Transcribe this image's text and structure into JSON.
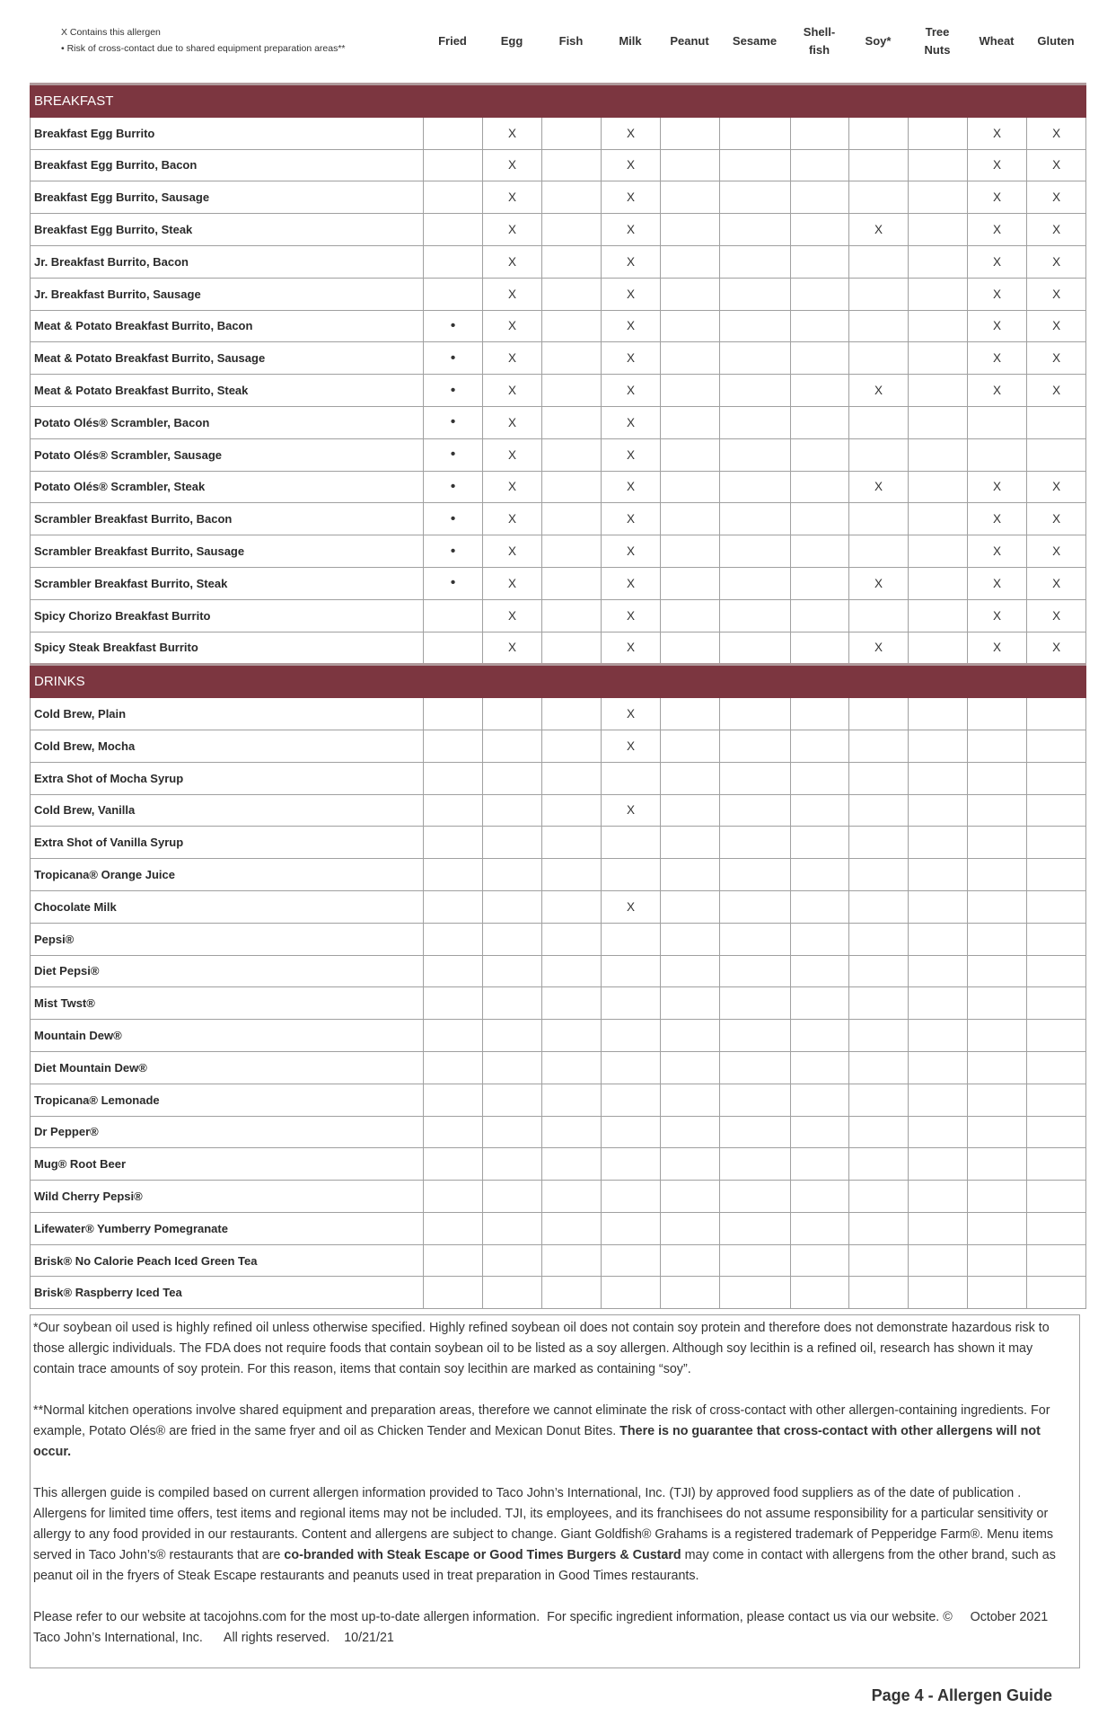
{
  "legend": {
    "contains": "X  Contains this allergen",
    "risk": "•  Risk of cross-contact due to shared equipment preparation areas**"
  },
  "columns": [
    "Fried",
    "Egg",
    "Fish",
    "Milk",
    "Peanut",
    "Sesame",
    "Shell-\nfish",
    "Soy*",
    "Tree\nNuts",
    "Wheat",
    "Gluten"
  ],
  "sections": [
    {
      "title": "BREAKFAST",
      "rows": [
        {
          "name": "Breakfast Egg Burrito",
          "cells": [
            "",
            "X",
            "",
            "X",
            "",
            "",
            "",
            "",
            "",
            "X",
            "X"
          ]
        },
        {
          "name": "Breakfast Egg Burrito, Bacon",
          "cells": [
            "",
            "X",
            "",
            "X",
            "",
            "",
            "",
            "",
            "",
            "X",
            "X"
          ]
        },
        {
          "name": "Breakfast Egg Burrito, Sausage",
          "cells": [
            "",
            "X",
            "",
            "X",
            "",
            "",
            "",
            "",
            "",
            "X",
            "X"
          ]
        },
        {
          "name": "Breakfast Egg Burrito, Steak",
          "cells": [
            "",
            "X",
            "",
            "X",
            "",
            "",
            "",
            "X",
            "",
            "X",
            "X"
          ]
        },
        {
          "name": "Jr. Breakfast Burrito, Bacon",
          "cells": [
            "",
            "X",
            "",
            "X",
            "",
            "",
            "",
            "",
            "",
            "X",
            "X"
          ]
        },
        {
          "name": "Jr. Breakfast Burrito, Sausage",
          "cells": [
            "",
            "X",
            "",
            "X",
            "",
            "",
            "",
            "",
            "",
            "X",
            "X"
          ]
        },
        {
          "name": "Meat & Potato Breakfast Burrito, Bacon",
          "cells": [
            "•",
            "X",
            "",
            "X",
            "",
            "",
            "",
            "",
            "",
            "X",
            "X"
          ]
        },
        {
          "name": "Meat & Potato Breakfast Burrito, Sausage",
          "cells": [
            "•",
            "X",
            "",
            "X",
            "",
            "",
            "",
            "",
            "",
            "X",
            "X"
          ]
        },
        {
          "name": "Meat & Potato Breakfast Burrito, Steak",
          "cells": [
            "•",
            "X",
            "",
            "X",
            "",
            "",
            "",
            "X",
            "",
            "X",
            "X"
          ]
        },
        {
          "name": "Potato Olés® Scrambler, Bacon",
          "cells": [
            "•",
            "X",
            "",
            "X",
            "",
            "",
            "",
            "",
            "",
            "",
            ""
          ]
        },
        {
          "name": "Potato Olés® Scrambler, Sausage",
          "cells": [
            "•",
            "X",
            "",
            "X",
            "",
            "",
            "",
            "",
            "",
            "",
            ""
          ]
        },
        {
          "name": "Potato Olés® Scrambler, Steak",
          "cells": [
            "•",
            "X",
            "",
            "X",
            "",
            "",
            "",
            "X",
            "",
            "X",
            "X"
          ]
        },
        {
          "name": "Scrambler Breakfast Burrito, Bacon",
          "cells": [
            "•",
            "X",
            "",
            "X",
            "",
            "",
            "",
            "",
            "",
            "X",
            "X"
          ]
        },
        {
          "name": "Scrambler Breakfast Burrito, Sausage",
          "cells": [
            "•",
            "X",
            "",
            "X",
            "",
            "",
            "",
            "",
            "",
            "X",
            "X"
          ]
        },
        {
          "name": "Scrambler Breakfast Burrito, Steak",
          "cells": [
            "•",
            "X",
            "",
            "X",
            "",
            "",
            "",
            "X",
            "",
            "X",
            "X"
          ]
        },
        {
          "name": "Spicy Chorizo Breakfast Burrito",
          "cells": [
            "",
            "X",
            "",
            "X",
            "",
            "",
            "",
            "",
            "",
            "X",
            "X"
          ]
        },
        {
          "name": "Spicy Steak Breakfast Burrito",
          "cells": [
            "",
            "X",
            "",
            "X",
            "",
            "",
            "",
            "X",
            "",
            "X",
            "X"
          ]
        }
      ]
    },
    {
      "title": "DRINKS",
      "rows": [
        {
          "name": "Cold Brew, Plain",
          "cells": [
            "",
            "",
            "",
            "X",
            "",
            "",
            "",
            "",
            "",
            "",
            ""
          ]
        },
        {
          "name": "Cold Brew, Mocha",
          "cells": [
            "",
            "",
            "",
            "X",
            "",
            "",
            "",
            "",
            "",
            "",
            ""
          ]
        },
        {
          "name": "Extra Shot of Mocha Syrup",
          "cells": [
            "",
            "",
            "",
            "",
            "",
            "",
            "",
            "",
            "",
            "",
            ""
          ]
        },
        {
          "name": "Cold Brew, Vanilla",
          "cells": [
            "",
            "",
            "",
            "X",
            "",
            "",
            "",
            "",
            "",
            "",
            ""
          ]
        },
        {
          "name": "Extra Shot of Vanilla Syrup",
          "cells": [
            "",
            "",
            "",
            "",
            "",
            "",
            "",
            "",
            "",
            "",
            ""
          ]
        },
        {
          "name": "Tropicana® Orange Juice",
          "cells": [
            "",
            "",
            "",
            "",
            "",
            "",
            "",
            "",
            "",
            "",
            ""
          ]
        },
        {
          "name": "Chocolate Milk",
          "cells": [
            "",
            "",
            "",
            "X",
            "",
            "",
            "",
            "",
            "",
            "",
            ""
          ]
        },
        {
          "name": "Pepsi®",
          "cells": [
            "",
            "",
            "",
            "",
            "",
            "",
            "",
            "",
            "",
            "",
            ""
          ]
        },
        {
          "name": "Diet Pepsi®",
          "cells": [
            "",
            "",
            "",
            "",
            "",
            "",
            "",
            "",
            "",
            "",
            ""
          ]
        },
        {
          "name": "Mist Twst®",
          "cells": [
            "",
            "",
            "",
            "",
            "",
            "",
            "",
            "",
            "",
            "",
            ""
          ]
        },
        {
          "name": "Mountain Dew®",
          "cells": [
            "",
            "",
            "",
            "",
            "",
            "",
            "",
            "",
            "",
            "",
            ""
          ]
        },
        {
          "name": "Diet Mountain Dew®",
          "cells": [
            "",
            "",
            "",
            "",
            "",
            "",
            "",
            "",
            "",
            "",
            ""
          ]
        },
        {
          "name": "Tropicana® Lemonade",
          "cells": [
            "",
            "",
            "",
            "",
            "",
            "",
            "",
            "",
            "",
            "",
            ""
          ]
        },
        {
          "name": "Dr Pepper®",
          "cells": [
            "",
            "",
            "",
            "",
            "",
            "",
            "",
            "",
            "",
            "",
            ""
          ]
        },
        {
          "name": "Mug® Root Beer",
          "cells": [
            "",
            "",
            "",
            "",
            "",
            "",
            "",
            "",
            "",
            "",
            ""
          ]
        },
        {
          "name": "Wild Cherry Pepsi®",
          "cells": [
            "",
            "",
            "",
            "",
            "",
            "",
            "",
            "",
            "",
            "",
            ""
          ]
        },
        {
          "name": "Lifewater® Yumberry Pomegranate",
          "cells": [
            "",
            "",
            "",
            "",
            "",
            "",
            "",
            "",
            "",
            "",
            ""
          ]
        },
        {
          "name": "Brisk® No Calorie Peach Iced Green Tea",
          "cells": [
            "",
            "",
            "",
            "",
            "",
            "",
            "",
            "",
            "",
            "",
            ""
          ]
        },
        {
          "name": "Brisk® Raspberry Iced Tea",
          "cells": [
            "",
            "",
            "",
            "",
            "",
            "",
            "",
            "",
            "",
            "",
            ""
          ]
        }
      ]
    }
  ],
  "notes": {
    "soy": "*Our soybean oil used is highly refined oil unless otherwise specified. Highly refined soybean oil does not contain soy protein and therefore does not demonstrate hazardous risk to those allergic individuals. The FDA does not require foods that contain soybean oil to be listed as a soy allergen. Although soy lecithin is a refined oil, research has shown it may contain trace amounts of soy protein. For this reason, items that contain soy lecithin are marked as containing “soy”.",
    "cross": "**Normal kitchen operations involve shared equipment and preparation areas, therefore we cannot eliminate the risk of cross-contact with other allergen-containing ingredients. For example, Potato Olés® are fried in the same fryer and oil as Chicken Tender and Mexican Donut Bites. ",
    "cross_bold": "There is no guarantee that cross-contact with other allergens will not occur.",
    "guide": "This allergen guide is compiled based on current allergen information provided to Taco John’s International, Inc. (TJI) by approved food suppliers as of the date of publication . Allergens for limited time offers, test items and regional items may not be included. TJI, its employees, and its franchisees do not assume responsibility for a particular sensitivity or allergy to any food provided in our restaurants. Content and allergens are subject to change. Giant Goldfish® Grahams is a registered trademark of Pepperidge Farm®. Menu items served in Taco John’s® restaurants that are ",
    "guide_bold": "co-branded with Steak Escape or Good Times Burgers & Custard",
    "guide_end": " may come in contact with allergens from the other brand, such as peanut oil in the fryers of Steak Escape restaurants and peanuts used in treat preparation in Good Times restaurants.",
    "website": "Please refer to our website at tacojohns.com for the most up-to-date allergen information.  For specific ingredient information, please contact us via our website. ©     October 2021      Taco John’s International, Inc.      All rights reserved.    10/21/21"
  },
  "page_label": "Page 4 - Allergen Guide",
  "colors": {
    "section_header": "#7c3640"
  }
}
